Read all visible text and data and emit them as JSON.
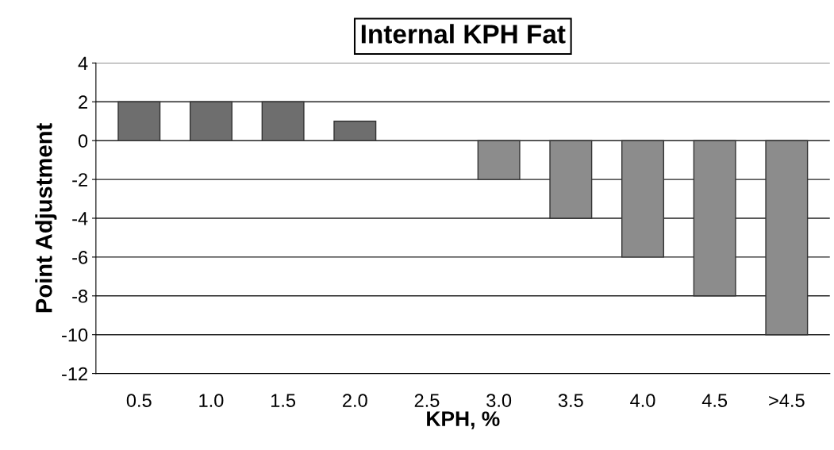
{
  "chart_data": {
    "type": "bar",
    "title": "Internal KPH Fat",
    "xlabel": "KPH, %",
    "ylabel": "Point Adjustment",
    "categories": [
      "0.5",
      "1.0",
      "1.5",
      "2.0",
      "2.5",
      "3.0",
      "3.5",
      "4.0",
      "4.5",
      ">4.5"
    ],
    "values": [
      2,
      2,
      2,
      1,
      0,
      -2,
      -4,
      -6,
      -8,
      -10
    ],
    "colors": [
      "#6e6e6e",
      "#6e6e6e",
      "#6e6e6e",
      "#6e6e6e",
      "#8c8c8c",
      "#8c8c8c",
      "#8c8c8c",
      "#8c8c8c",
      "#8c8c8c",
      "#8c8c8c"
    ],
    "ylim": [
      -12,
      4
    ],
    "yticks": [
      -12,
      -10,
      -8,
      -6,
      -4,
      -2,
      0,
      2,
      4
    ],
    "grid": "y"
  }
}
